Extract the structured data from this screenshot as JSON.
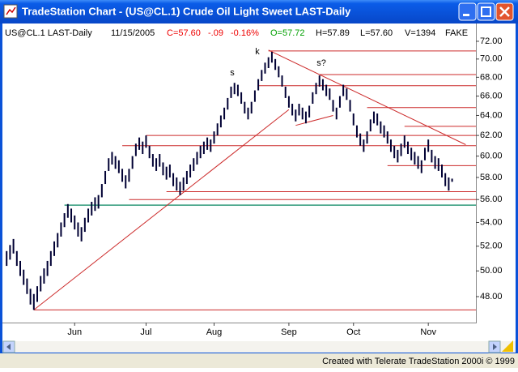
{
  "window": {
    "title": "TradeStation Chart - (US@CL.1) Crude Oil Light Sweet LAST-Daily"
  },
  "info": {
    "symbol": "US@CL.1 LAST-Daily",
    "date": "11/15/2005",
    "close": "C=57.60",
    "change": "-.09",
    "percent": "-0.16%",
    "open": "O=57.72",
    "high": "H=57.89",
    "low": "L=57.60",
    "volume": "V=1394",
    "feed": "FAKE"
  },
  "footer": "Created with Telerate TradeStation 2000i © 1999",
  "chart_data": {
    "type": "ohlc",
    "log_scale": true,
    "bar_color": "#000033",
    "line_color": "#cc2a2a",
    "support_color": "#2e9a7a",
    "xlim": [
      -1,
      138
    ],
    "ylim": [
      46.3,
      72.6
    ],
    "xticks": [
      {
        "value": 20,
        "label": "Jun"
      },
      {
        "value": 41,
        "label": "Jul"
      },
      {
        "value": 61,
        "label": "Aug"
      },
      {
        "value": 83,
        "label": "Sep"
      },
      {
        "value": 102,
        "label": "Oct"
      },
      {
        "value": 124,
        "label": "Nov"
      }
    ],
    "yticks": [
      {
        "value": 48,
        "label": "48.00"
      },
      {
        "value": 50,
        "label": "50.00"
      },
      {
        "value": 52,
        "label": "52.00"
      },
      {
        "value": 54,
        "label": "54.00"
      },
      {
        "value": 56,
        "label": "56.00"
      },
      {
        "value": 58,
        "label": "58.00"
      },
      {
        "value": 60,
        "label": "60.00"
      },
      {
        "value": 62,
        "label": "62.00"
      },
      {
        "value": 64,
        "label": "64.00"
      },
      {
        "value": 66,
        "label": "66.00"
      },
      {
        "value": 68,
        "label": "68.00"
      },
      {
        "value": 70,
        "label": "70.00"
      },
      {
        "value": 72,
        "label": "72.00"
      }
    ],
    "high": [
      51.6,
      52.1,
      52.6,
      51.6,
      50.8,
      50.1,
      49.4,
      48.6,
      48.2,
      48.8,
      49.6,
      50.2,
      50.8,
      51.6,
      52.4,
      53.1,
      54.0,
      54.8,
      55.6,
      55.2,
      54.6,
      54.0,
      53.6,
      54.4,
      55.2,
      55.8,
      56.2,
      56.4,
      57.4,
      58.6,
      59.8,
      60.4,
      60.0,
      59.6,
      58.8,
      58.2,
      58.8,
      60.0,
      61.2,
      61.8,
      61.4,
      62.0,
      61.0,
      60.2,
      59.8,
      60.2,
      59.4,
      59.0,
      59.2,
      58.4,
      58.0,
      57.6,
      58.0,
      58.6,
      59.2,
      59.8,
      60.4,
      61.0,
      61.4,
      61.8,
      61.6,
      62.4,
      63.2,
      64.0,
      64.8,
      65.8,
      67.0,
      67.4,
      67.2,
      66.4,
      65.4,
      64.8,
      65.4,
      66.6,
      67.8,
      68.8,
      69.6,
      70.2,
      70.8,
      70.0,
      69.2,
      68.2,
      67.0,
      66.0,
      65.2,
      64.6,
      65.2,
      64.8,
      64.4,
      65.0,
      66.4,
      67.4,
      68.2,
      67.8,
      67.2,
      66.8,
      65.6,
      64.8,
      66.0,
      67.2,
      66.8,
      65.6,
      64.2,
      63.0,
      62.2,
      61.6,
      62.4,
      63.6,
      64.4,
      64.2,
      63.4,
      63.0,
      62.4,
      61.6,
      61.0,
      60.6,
      61.2,
      62.0,
      61.4,
      60.8,
      60.4,
      60.0,
      59.6,
      60.8,
      61.6,
      60.6,
      60.0,
      59.8,
      59.2,
      58.4,
      58.0,
      57.89
    ],
    "low": [
      50.4,
      50.9,
      51.4,
      50.4,
      49.6,
      48.9,
      48.2,
      47.4,
      47.0,
      47.6,
      48.4,
      49.0,
      49.6,
      50.4,
      51.2,
      51.9,
      52.8,
      53.6,
      54.4,
      54.0,
      53.4,
      52.8,
      52.4,
      53.2,
      54.0,
      54.6,
      55.0,
      55.2,
      56.2,
      57.4,
      58.6,
      59.2,
      58.8,
      58.4,
      57.6,
      57.0,
      57.6,
      58.8,
      60.0,
      60.6,
      60.2,
      60.8,
      59.8,
      59.0,
      58.6,
      59.0,
      58.2,
      57.8,
      58.0,
      57.2,
      56.8,
      56.4,
      56.8,
      57.4,
      58.0,
      58.6,
      59.2,
      59.8,
      60.2,
      60.6,
      60.4,
      61.2,
      62.0,
      62.8,
      63.6,
      64.6,
      65.8,
      66.2,
      66.0,
      65.2,
      64.2,
      63.6,
      64.2,
      65.4,
      66.6,
      67.6,
      68.4,
      69.0,
      69.6,
      68.8,
      68.0,
      67.0,
      65.8,
      64.8,
      64.0,
      63.4,
      64.0,
      63.6,
      63.2,
      63.8,
      65.2,
      66.2,
      67.0,
      66.6,
      66.0,
      65.6,
      64.4,
      63.6,
      64.8,
      66.0,
      65.6,
      64.4,
      63.0,
      61.8,
      61.0,
      60.4,
      61.2,
      62.4,
      63.2,
      63.0,
      62.2,
      61.8,
      61.2,
      60.4,
      59.8,
      59.4,
      60.0,
      60.8,
      60.2,
      59.6,
      59.2,
      58.8,
      58.4,
      59.6,
      60.4,
      59.4,
      58.8,
      58.6,
      58.0,
      57.2,
      56.8,
      57.6
    ],
    "hlines": [
      {
        "value": 70.9,
        "from": 77
      },
      {
        "value": 68.3,
        "from": 92
      },
      {
        "value": 67.1,
        "from": 74
      },
      {
        "value": 64.8,
        "from": 106
      },
      {
        "value": 62.9,
        "from": 117
      },
      {
        "value": 62.0,
        "from": 41
      },
      {
        "value": 61.0,
        "from": 34
      },
      {
        "value": 59.1,
        "from": 112
      },
      {
        "value": 56.7,
        "from": 47
      },
      {
        "value": 56.0,
        "from": 36
      },
      {
        "value": 47.0,
        "from": 8
      }
    ],
    "support": {
      "value": 55.5,
      "from": 17
    },
    "trendlines": [
      {
        "x": [
          8,
          83
        ],
        "y": [
          47.0,
          64.6
        ]
      },
      {
        "x": [
          77,
          135
        ],
        "y": [
          71.0,
          61.1
        ]
      },
      {
        "x": [
          85,
          96
        ],
        "y": [
          63.0,
          64.0
        ]
      }
    ],
    "annotations": [
      "s",
      "k",
      "s?"
    ]
  }
}
